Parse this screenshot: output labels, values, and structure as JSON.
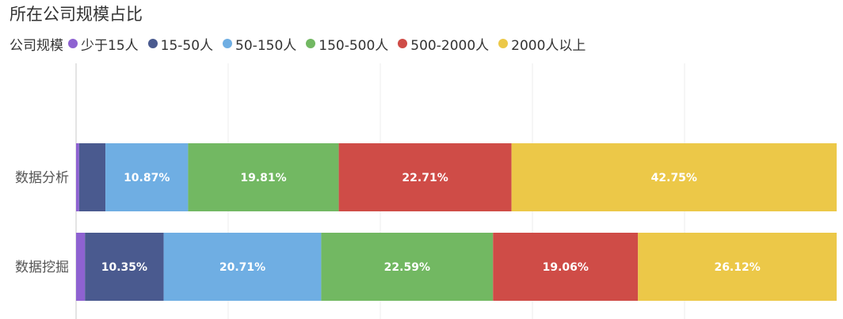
{
  "title": "所在公司规模占比",
  "legend_title": "公司规模",
  "colors": {
    "少于15人": "#8e62d1",
    "15-50人": "#4a5a8f",
    "50-150人": "#6faee3",
    "150-500人": "#72b862",
    "500-2000人": "#cf4c47",
    "2000人以上": "#ecc848"
  },
  "chart_data": {
    "type": "bar",
    "orientation": "horizontal",
    "stacked": "percent",
    "title": "所在公司规模占比",
    "categories": [
      "数据分析",
      "数据挖掘"
    ],
    "series": [
      {
        "name": "少于15人",
        "values": [
          0.4,
          1.17
        ]
      },
      {
        "name": "15-50人",
        "values": [
          3.46,
          10.35
        ]
      },
      {
        "name": "50-150人",
        "values": [
          10.87,
          20.71
        ]
      },
      {
        "name": "150-500人",
        "values": [
          19.81,
          22.59
        ]
      },
      {
        "name": "500-2000人",
        "values": [
          22.71,
          19.06
        ]
      },
      {
        "name": "2000人以上",
        "values": [
          42.75,
          26.12
        ]
      }
    ],
    "data_labels": [
      [
        "",
        "",
        "10.87%",
        "19.81%",
        "22.71%",
        "42.75%"
      ],
      [
        "",
        "10.35%",
        "20.71%",
        "22.59%",
        "19.06%",
        "26.12%"
      ]
    ],
    "xlim": [
      0,
      100
    ],
    "grid": true,
    "legend_position": "top-left"
  }
}
